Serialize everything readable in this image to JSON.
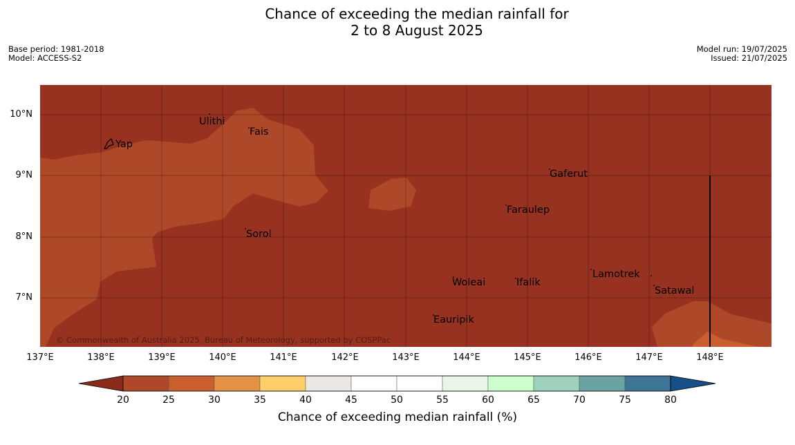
{
  "title_line1": "Chance of exceeding the median rainfall for",
  "title_line2": "2 to 8 August 2025",
  "meta_left": [
    "Base period: 1981-2018",
    "Model: ACCESS-S2"
  ],
  "meta_right": [
    "Model run: 19/07/2025",
    "Issued: 21/07/2025"
  ],
  "copyright": "© Commonwealth of Australia 2025, Bureau of Meteorology, supported by COSPPac",
  "map": {
    "lon_range": [
      137,
      149
    ],
    "lat_range": [
      6.2,
      10.5
    ],
    "lon_ticks": [
      "137°E",
      "138°E",
      "139°E",
      "140°E",
      "141°E",
      "142°E",
      "143°E",
      "144°E",
      "145°E",
      "146°E",
      "147°E",
      "148°E"
    ],
    "lat_ticks": [
      "10°N",
      "9°N",
      "8°N",
      "7°N"
    ],
    "places": [
      {
        "name": "Yap"
      },
      {
        "name": "Ulithi"
      },
      {
        "name": "Fais"
      },
      {
        "name": "Gaferut"
      },
      {
        "name": "Faraulep"
      },
      {
        "name": "Sorol"
      },
      {
        "name": "Lamotrek"
      },
      {
        "name": "Woleai"
      },
      {
        "name": "Ifalik"
      },
      {
        "name": "Satawal"
      },
      {
        "name": "Eauripik"
      }
    ],
    "colors": {
      "bin_20_25": "#973220",
      "bin_25_30": "#ad4928"
    }
  },
  "colorbar": {
    "title": "Chance of exceeding median rainfall (%)",
    "ticks": [
      "20",
      "25",
      "30",
      "35",
      "40",
      "45",
      "50",
      "55",
      "60",
      "65",
      "70",
      "75",
      "80"
    ],
    "colors": [
      "#8a2a1c",
      "#ad4928",
      "#c95f2e",
      "#e39246",
      "#ffce6a",
      "#ece9e4",
      "#ffffff",
      "#ffffff",
      "#eaf5ea",
      "#ccffcc",
      "#9ed1bb",
      "#6ba2a2",
      "#3e7496",
      "#174f8a"
    ]
  }
}
